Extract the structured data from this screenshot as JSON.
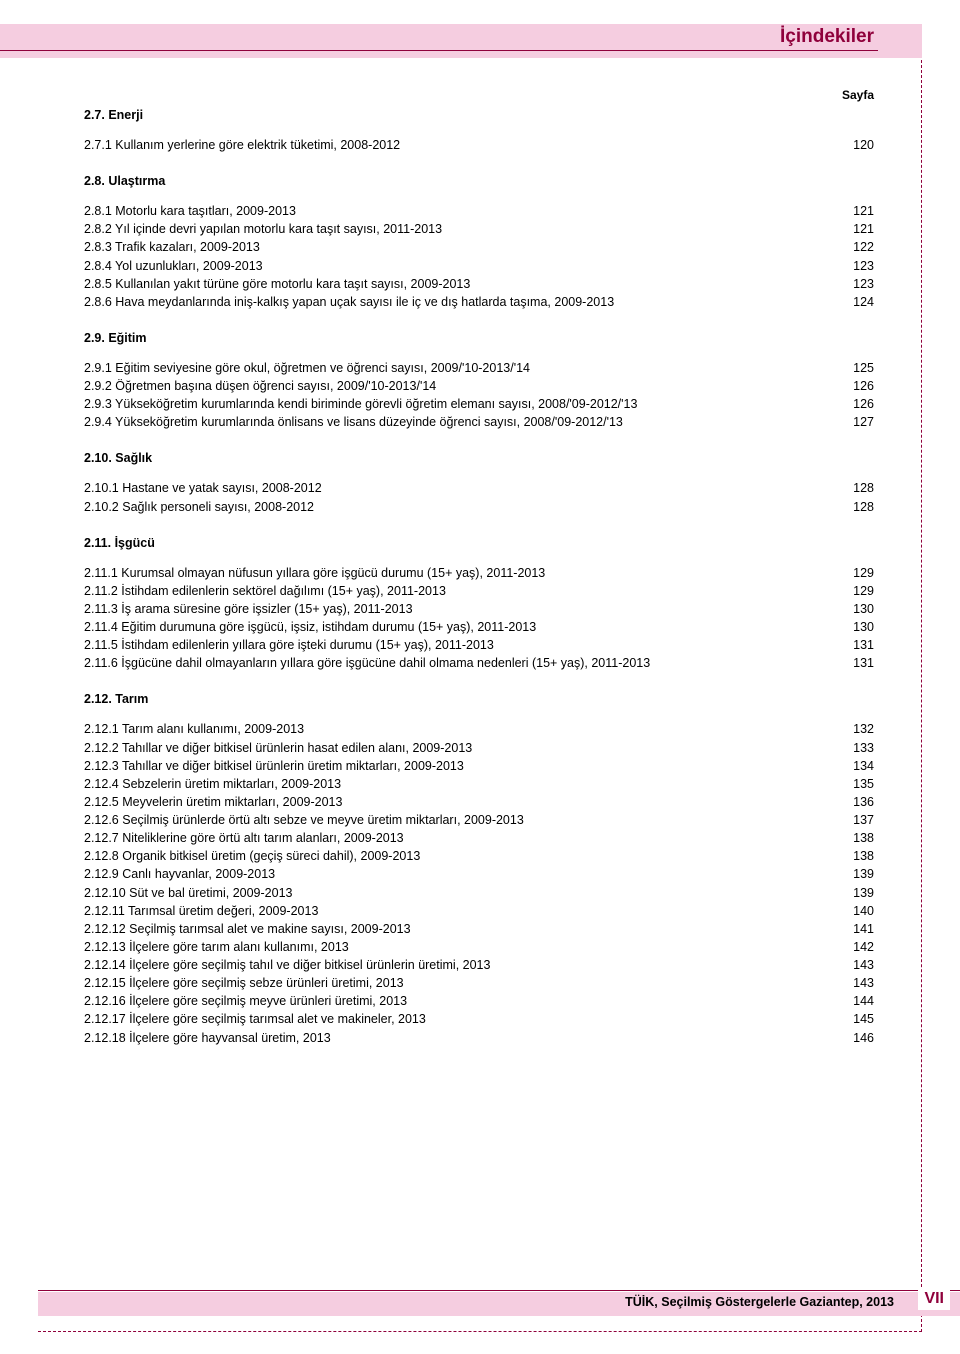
{
  "header": {
    "title": "İçindekiler"
  },
  "page_label": "Sayfa",
  "sections": [
    {
      "title": "2.7. Enerji",
      "entries": [
        {
          "label": "2.7.1 Kullanım yerlerine göre elektrik tüketimi, 2008-2012",
          "page": "120"
        }
      ]
    },
    {
      "title": "2.8. Ulaştırma",
      "entries": [
        {
          "label": "2.8.1 Motorlu kara taşıtları, 2009-2013",
          "page": "121"
        },
        {
          "label": "2.8.2 Yıl içinde devri yapılan motorlu kara taşıt sayısı, 2011-2013",
          "page": "121"
        },
        {
          "label": "2.8.3 Trafik kazaları, 2009-2013",
          "page": "122"
        },
        {
          "label": "2.8.4 Yol uzunlukları, 2009-2013",
          "page": "123"
        },
        {
          "label": "2.8.5 Kullanılan yakıt türüne göre motorlu kara taşıt sayısı, 2009-2013",
          "page": "123"
        },
        {
          "label": "2.8.6 Hava meydanlarında iniş-kalkış yapan uçak sayısı ile iç ve dış hatlarda taşıma, 2009-2013",
          "page": "124"
        }
      ]
    },
    {
      "title": "2.9. Eğitim",
      "entries": [
        {
          "label": "2.9.1 Eğitim seviyesine göre okul, öğretmen ve öğrenci sayısı, 2009/'10-2013/'14",
          "page": "125"
        },
        {
          "label": "2.9.2 Öğretmen başına düşen öğrenci sayısı, 2009/'10-2013/'14",
          "page": "126"
        },
        {
          "label": "2.9.3 Yükseköğretim kurumlarında kendi biriminde görevli öğretim elemanı sayısı, 2008/'09-2012/'13",
          "page": "126"
        },
        {
          "label": "2.9.4 Yükseköğretim kurumlarında önlisans ve lisans düzeyinde öğrenci sayısı, 2008/'09-2012/'13",
          "page": "127"
        }
      ]
    },
    {
      "title": "2.10. Sağlık",
      "entries": [
        {
          "label": "2.10.1 Hastane ve yatak sayısı, 2008-2012",
          "page": "128"
        },
        {
          "label": "2.10.2 Sağlık personeli sayısı, 2008-2012",
          "page": "128"
        }
      ]
    },
    {
      "title": "2.11. İşgücü",
      "entries": [
        {
          "label": "2.11.1 Kurumsal olmayan nüfusun yıllara göre işgücü durumu (15+ yaş), 2011-2013",
          "page": "129"
        },
        {
          "label": "2.11.2 İstihdam edilenlerin sektörel dağılımı (15+ yaş), 2011-2013",
          "page": "129"
        },
        {
          "label": "2.11.3 İş arama süresine göre işsizler (15+ yaş), 2011-2013",
          "page": "130"
        },
        {
          "label": "2.11.4 Eğitim durumuna göre işgücü, işsiz, istihdam durumu (15+ yaş), 2011-2013",
          "page": "130"
        },
        {
          "label": "2.11.5 İstihdam edilenlerin yıllara göre işteki durumu (15+ yaş), 2011-2013",
          "page": "131"
        },
        {
          "label": "2.11.6 İşgücüne dahil olmayanların yıllara göre işgücüne dahil olmama nedenleri (15+ yaş), 2011-2013",
          "page": "131"
        }
      ]
    },
    {
      "title": "2.12. Tarım",
      "entries": [
        {
          "label": "2.12.1 Tarım alanı kullanımı, 2009-2013",
          "page": "132"
        },
        {
          "label": "2.12.2 Tahıllar ve diğer bitkisel ürünlerin hasat edilen alanı, 2009-2013",
          "page": "133"
        },
        {
          "label": "2.12.3 Tahıllar ve diğer bitkisel ürünlerin üretim miktarları, 2009-2013",
          "page": "134"
        },
        {
          "label": "2.12.4 Sebzelerin üretim miktarları, 2009-2013",
          "page": "135"
        },
        {
          "label": "2.12.5 Meyvelerin üretim miktarları, 2009-2013",
          "page": "136"
        },
        {
          "label": "2.12.6 Seçilmiş ürünlerde örtü altı sebze ve meyve üretim miktarları, 2009-2013",
          "page": "137"
        },
        {
          "label": "2.12.7 Niteliklerine göre örtü altı tarım alanları, 2009-2013",
          "page": "138"
        },
        {
          "label": "2.12.8 Organik bitkisel üretim (geçiş süreci dahil), 2009-2013",
          "page": "138"
        },
        {
          "label": "2.12.9 Canlı hayvanlar, 2009-2013",
          "page": "139"
        },
        {
          "label": "2.12.10 Süt ve bal üretimi, 2009-2013",
          "page": "139"
        },
        {
          "label": "2.12.11 Tarımsal üretim değeri, 2009-2013",
          "page": "140"
        },
        {
          "label": "2.12.12 Seçilmiş tarımsal alet ve makine sayısı, 2009-2013",
          "page": "141"
        },
        {
          "label": "2.12.13 İlçelere göre tarım alanı kullanımı, 2013",
          "page": "142"
        },
        {
          "label": "2.12.14 İlçelere göre seçilmiş tahıl ve diğer bitkisel ürünlerin üretimi, 2013",
          "page": "143"
        },
        {
          "label": "2.12.15 İlçelere göre seçilmiş sebze ürünleri üretimi, 2013",
          "page": "143"
        },
        {
          "label": "2.12.16 İlçelere göre seçilmiş meyve ürünleri üretimi, 2013",
          "page": "144"
        },
        {
          "label": "2.12.17 İlçelere göre seçilmiş tarımsal alet ve makineler, 2013",
          "page": "145"
        },
        {
          "label": "2.12.18 İlçelere göre hayvansal üretim, 2013",
          "page": "146"
        }
      ]
    }
  ],
  "footer": {
    "text": "TÜİK, Seçilmiş Göstergelerle Gaziantep, 2013",
    "page_num": "VII"
  },
  "colors": {
    "band": "#f5cde0",
    "accent": "#8f003b",
    "text": "#000000",
    "bg": "#ffffff"
  }
}
